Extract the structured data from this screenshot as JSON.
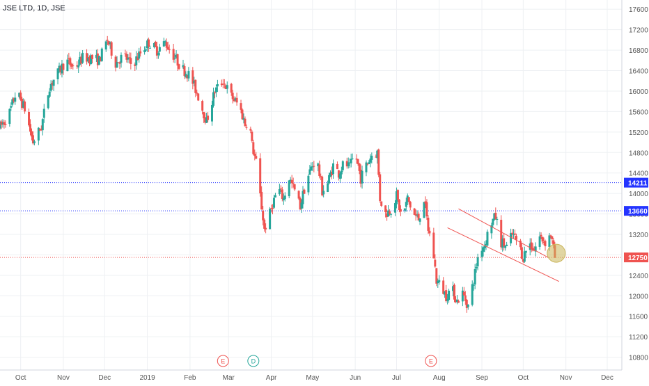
{
  "header": {
    "title": "JSE LTD, 1D, JSE"
  },
  "colors": {
    "up": "#26a69a",
    "down": "#ef5350",
    "hline_blue": "#2434ff",
    "hline_red": "#ef5350",
    "grid": "#eef0f3",
    "axis_text": "#555555",
    "highlight": "#c9b458"
  },
  "chart_data": {
    "type": "candlestick",
    "title": "JSE LTD, 1D, JSE",
    "y_ticks": [
      10800,
      11200,
      11600,
      12000,
      12400,
      12800,
      13200,
      13600,
      14000,
      14400,
      14800,
      15200,
      15600,
      16000,
      16400,
      16800,
      17200,
      17600
    ],
    "ylim": [
      10550,
      17780
    ],
    "x_ticks": [
      "Oct",
      "Nov",
      "Dec",
      "2019",
      "Feb",
      "Mar",
      "Apr",
      "May",
      "Jun",
      "Jul",
      "Aug",
      "Sep",
      "Oct",
      "Nov",
      "Dec"
    ],
    "xlim_days": [
      0,
      440
    ],
    "x_tick_days": [
      15,
      46,
      76,
      107,
      138,
      166,
      197,
      227,
      258,
      288,
      319,
      350,
      380,
      411,
      441
    ],
    "price_levels": [
      {
        "value": 14211,
        "label": "14211",
        "color": "blue"
      },
      {
        "value": 13660,
        "label": "13660",
        "color": "blue"
      },
      {
        "value": 12750,
        "label": "12750",
        "color": "red"
      }
    ],
    "channel": {
      "upper": [
        {
          "day": 333,
          "price": 13700
        },
        {
          "day": 398,
          "price": 12750
        }
      ],
      "lower": [
        {
          "day": 325,
          "price": 13330
        },
        {
          "day": 406,
          "price": 12280
        }
      ]
    },
    "events": [
      {
        "label": "E",
        "day": 162,
        "color": "red"
      },
      {
        "label": "D",
        "day": 184,
        "color": "teal"
      },
      {
        "label": "E",
        "day": 313,
        "color": "red"
      }
    ],
    "anchors": [
      [
        0,
        15300
      ],
      [
        6,
        15500
      ],
      [
        12,
        16000
      ],
      [
        18,
        15650
      ],
      [
        24,
        15000
      ],
      [
        30,
        15300
      ],
      [
        36,
        16100
      ],
      [
        42,
        16350
      ],
      [
        48,
        16600
      ],
      [
        54,
        16450
      ],
      [
        60,
        16650
      ],
      [
        66,
        16650
      ],
      [
        72,
        16600
      ],
      [
        78,
        17000
      ],
      [
        84,
        16550
      ],
      [
        90,
        16700
      ],
      [
        96,
        16500
      ],
      [
        102,
        16750
      ],
      [
        108,
        16950
      ],
      [
        114,
        16800
      ],
      [
        120,
        16950
      ],
      [
        126,
        16700
      ],
      [
        132,
        16450
      ],
      [
        138,
        16300
      ],
      [
        144,
        15900
      ],
      [
        150,
        15400
      ],
      [
        156,
        16000
      ],
      [
        162,
        16200
      ],
      [
        168,
        15900
      ],
      [
        174,
        15700
      ],
      [
        178,
        15350
      ],
      [
        181,
        15450
      ],
      [
        183,
        14950
      ],
      [
        186,
        14600
      ],
      [
        189,
        13950
      ],
      [
        192,
        13300
      ],
      [
        195,
        13500
      ],
      [
        198,
        13800
      ],
      [
        202,
        14100
      ],
      [
        206,
        13900
      ],
      [
        210,
        14300
      ],
      [
        214,
        14050
      ],
      [
        218,
        13750
      ],
      [
        222,
        14200
      ],
      [
        226,
        14500
      ],
      [
        230,
        14700
      ],
      [
        234,
        14050
      ],
      [
        238,
        14200
      ],
      [
        242,
        14550
      ],
      [
        246,
        14400
      ],
      [
        250,
        14600
      ],
      [
        254,
        14500
      ],
      [
        258,
        14800
      ],
      [
        262,
        14300
      ],
      [
        266,
        14550
      ],
      [
        270,
        14750
      ],
      [
        274,
        14800
      ],
      [
        276,
        13900
      ],
      [
        280,
        13600
      ],
      [
        284,
        13700
      ],
      [
        288,
        13950
      ],
      [
        292,
        13500
      ],
      [
        296,
        13900
      ],
      [
        300,
        13600
      ],
      [
        304,
        13500
      ],
      [
        308,
        13900
      ],
      [
        311,
        13300
      ],
      [
        314,
        13000
      ],
      [
        317,
        12300
      ],
      [
        320,
        12200
      ],
      [
        324,
        12000
      ],
      [
        328,
        12150
      ],
      [
        332,
        11900
      ],
      [
        336,
        12050
      ],
      [
        340,
        11800
      ],
      [
        344,
        12300
      ],
      [
        348,
        12900
      ],
      [
        352,
        13000
      ],
      [
        356,
        13400
      ],
      [
        360,
        13550
      ],
      [
        364,
        13050
      ],
      [
        368,
        12950
      ],
      [
        372,
        13200
      ],
      [
        376,
        13050
      ],
      [
        380,
        12750
      ],
      [
        384,
        13050
      ],
      [
        388,
        12900
      ],
      [
        392,
        13150
      ],
      [
        396,
        13050
      ],
      [
        400,
        13200
      ],
      [
        403,
        12750
      ]
    ]
  }
}
